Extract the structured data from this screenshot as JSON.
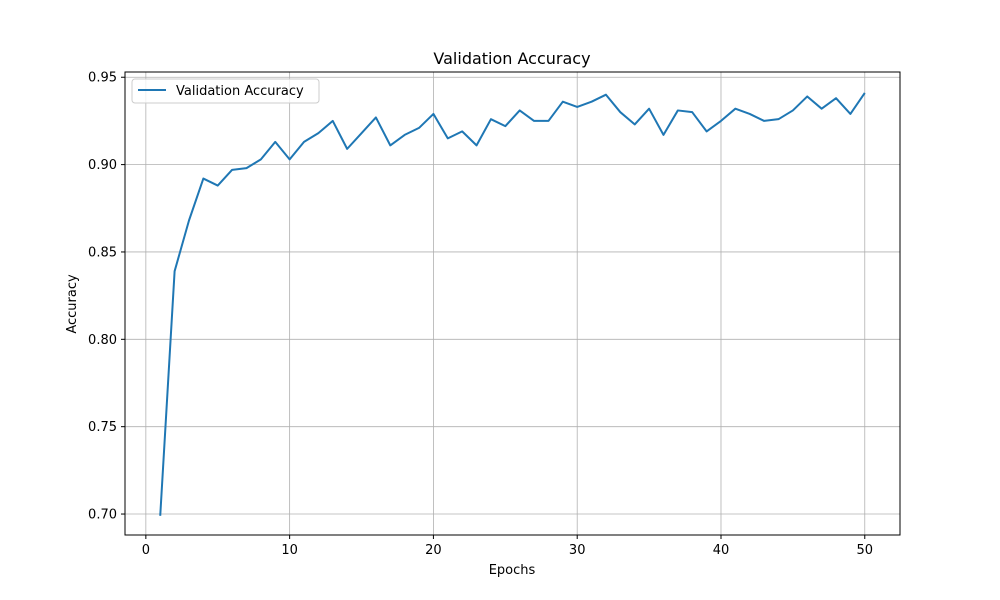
{
  "chart_data": {
    "type": "line",
    "title": "Validation Accuracy",
    "xlabel": "Epochs",
    "ylabel": "Accuracy",
    "xlim": [
      -1.45,
      52.45
    ],
    "ylim": [
      0.688,
      0.953
    ],
    "xticks": [
      0,
      10,
      20,
      30,
      40,
      50
    ],
    "yticks": [
      0.7,
      0.75,
      0.8,
      0.85,
      0.9,
      0.95
    ],
    "ytick_labels": [
      "0.70",
      "0.75",
      "0.80",
      "0.85",
      "0.90",
      "0.95"
    ],
    "grid": true,
    "legend_position": "top-left",
    "series": [
      {
        "name": "Validation Accuracy",
        "color": "#1f77b4",
        "x": [
          1,
          2,
          3,
          4,
          5,
          6,
          7,
          8,
          9,
          10,
          11,
          12,
          13,
          14,
          15,
          16,
          17,
          18,
          19,
          20,
          21,
          22,
          23,
          24,
          25,
          26,
          27,
          28,
          29,
          30,
          31,
          32,
          33,
          34,
          35,
          36,
          37,
          38,
          39,
          40,
          41,
          42,
          43,
          44,
          45,
          46,
          47,
          48,
          49,
          50
        ],
        "y": [
          0.699,
          0.839,
          0.868,
          0.892,
          0.888,
          0.897,
          0.898,
          0.903,
          0.913,
          0.903,
          0.913,
          0.918,
          0.925,
          0.909,
          0.918,
          0.927,
          0.911,
          0.917,
          0.921,
          0.929,
          0.915,
          0.919,
          0.911,
          0.926,
          0.922,
          0.931,
          0.925,
          0.925,
          0.936,
          0.933,
          0.936,
          0.94,
          0.93,
          0.923,
          0.932,
          0.917,
          0.931,
          0.93,
          0.919,
          0.925,
          0.932,
          0.929,
          0.925,
          0.926,
          0.931,
          0.939,
          0.932,
          0.938,
          0.929,
          0.941
        ]
      }
    ]
  }
}
